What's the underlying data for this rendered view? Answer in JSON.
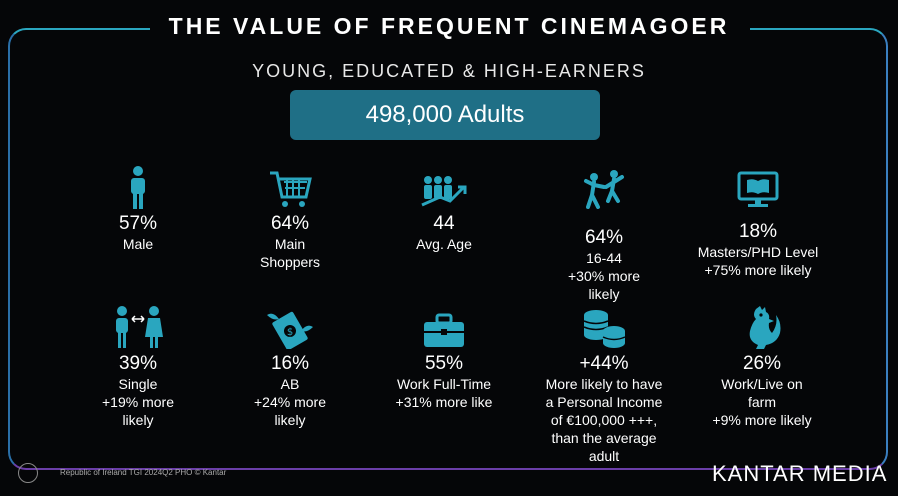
{
  "title": "THE VALUE OF FREQUENT CINEMAGOER",
  "subtitle": "YOUNG, EDUCATED & HIGH-EARNERS",
  "headline": "498,000 Adults",
  "accent_color": "#1f6f86",
  "icon_color": "#2aa6bf",
  "stats_row1": [
    {
      "icon": "person-icon",
      "value": "57%",
      "label_lines": [
        "Male"
      ]
    },
    {
      "icon": "shopping-cart-icon",
      "value": "64%",
      "label_lines": [
        "Main",
        "Shoppers"
      ]
    },
    {
      "icon": "group-growth-icon",
      "value": "44",
      "label_lines": [
        "Avg. Age"
      ]
    },
    {
      "icon": "dancing-people-icon",
      "value": "64%",
      "label_lines": [
        "16-44",
        "+30% more",
        "likely"
      ]
    },
    {
      "icon": "monitor-book-icon",
      "value": "18%",
      "label_lines": [
        "Masters/PHD Level",
        "+75% more likely"
      ]
    }
  ],
  "stats_row2": [
    {
      "icon": "couple-icon",
      "value": "39%",
      "label_lines": [
        "Single",
        "+19% more",
        "likely"
      ]
    },
    {
      "icon": "flying-money-icon",
      "value": "16%",
      "label_lines": [
        "AB",
        "+24% more",
        "likely"
      ]
    },
    {
      "icon": "briefcase-icon",
      "value": "55%",
      "label_lines": [
        "Work Full-Time",
        "+31% more like"
      ]
    },
    {
      "icon": "coins-icon",
      "value": "+44%",
      "label_lines": [
        "More likely to have",
        "a Personal Income",
        "of €100,000 +++,",
        "than the average",
        "adult"
      ]
    },
    {
      "icon": "rooster-icon",
      "value": "26%",
      "label_lines": [
        "Work/Live on",
        "farm",
        "+9% more likely"
      ]
    }
  ],
  "footer_note": "Republic of Ireland TGI 2024Q2 PHO © Kantar",
  "brand": "KANTAR MEDIA"
}
